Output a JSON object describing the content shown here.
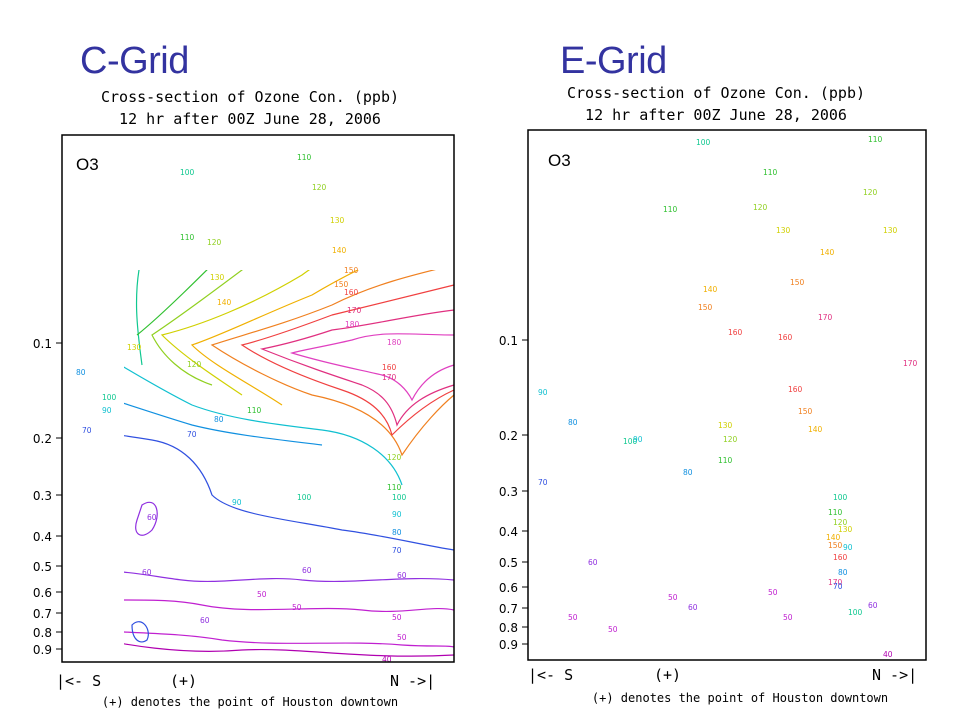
{
  "chart_data": [
    {
      "type": "contour",
      "heading": "C-Grid",
      "title_line1": "Cross-section of Ozone Con. (ppb)",
      "title_line2": "12 hr after 00Z June 28, 2006",
      "variable_label": "O3",
      "y_ticks": [
        "0.1",
        "0.2",
        "0.3",
        "0.4",
        "0.5",
        "0.6",
        "0.7",
        "0.8",
        "0.9"
      ],
      "x_left_label": "|<- S",
      "x_mid_label": "(+)",
      "x_right_label": "N ->|",
      "footnote": "(+) denotes the point of Houston downtown",
      "contour_levels": [
        40,
        50,
        60,
        70,
        80,
        90,
        100,
        110,
        120,
        130,
        140,
        150,
        160,
        170,
        180
      ],
      "contour_labels": [
        "100",
        "110",
        "110",
        "120",
        "120",
        "130",
        "130",
        "140",
        "140",
        "150",
        "150",
        "160",
        "160",
        "170",
        "170",
        "180",
        "180",
        "130",
        "120",
        "80",
        "100",
        "90",
        "110",
        "80",
        "70",
        "70",
        "90",
        "100",
        "110",
        "120",
        "100",
        "90",
        "80",
        "70",
        "60",
        "60",
        "60",
        "60",
        "50",
        "50",
        "60",
        "50",
        "50",
        "40"
      ]
    },
    {
      "type": "contour",
      "heading": "E-Grid",
      "title_line1": "Cross-section of Ozone Con. (ppb)",
      "title_line2": "12 hr after 00Z June 28, 2006",
      "variable_label": "O3",
      "y_ticks": [
        "0.1",
        "0.2",
        "0.3",
        "0.4",
        "0.5",
        "0.6",
        "0.7",
        "0.8",
        "0.9"
      ],
      "x_left_label": "|<- S",
      "x_mid_label": "(+)",
      "x_right_label": "N ->|",
      "footnote": "(+) denotes the point of Houston downtown",
      "contour_levels": [
        40,
        50,
        60,
        70,
        80,
        90,
        100,
        110,
        120,
        130,
        140,
        150,
        160,
        170
      ],
      "contour_labels": [
        "100",
        "110",
        "110",
        "110",
        "120",
        "120",
        "130",
        "130",
        "140",
        "140",
        "150",
        "150",
        "160",
        "160",
        "170",
        "170",
        "160",
        "150",
        "140",
        "130",
        "120",
        "110",
        "100",
        "90",
        "80",
        "70",
        "90",
        "80",
        "100",
        "110",
        "120",
        "130",
        "140",
        "150",
        "160",
        "170",
        "100",
        "90",
        "80",
        "70",
        "60",
        "60",
        "50",
        "50",
        "60",
        "50",
        "50",
        "50",
        "40"
      ]
    }
  ],
  "colors": {
    "heading": "#3333a0",
    "c40": "#b000b0",
    "c50": "#c020d0",
    "c60": "#9030e0",
    "c70": "#3050e0",
    "c80": "#1090e0",
    "c90": "#10c0d0",
    "c100": "#10c890",
    "c110": "#30c030",
    "c120": "#90d020",
    "c130": "#d0d000",
    "c140": "#f0b000",
    "c150": "#f08020",
    "c160": "#f04040",
    "c170": "#e03080",
    "c180": "#e040c0"
  }
}
